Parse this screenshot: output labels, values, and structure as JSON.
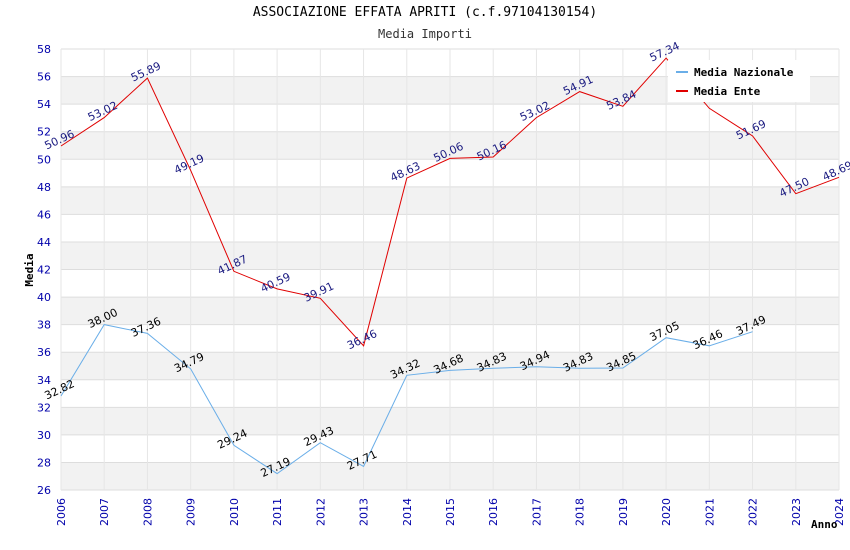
{
  "chart_data": {
    "type": "line",
    "title": "ASSOCIAZIONE EFFATA APRITI (c.f.97104130154)",
    "subtitle": "Media Importi",
    "xlabel": "Anno",
    "ylabel": "Media",
    "ylim": [
      26,
      58
    ],
    "yticks": [
      "26",
      "28",
      "30",
      "32",
      "34",
      "36",
      "38",
      "40",
      "42",
      "44",
      "46",
      "48",
      "50",
      "52",
      "54",
      "56",
      "58"
    ],
    "categories": [
      "2006",
      "2007",
      "2008",
      "2009",
      "2010",
      "2011",
      "2012",
      "2013",
      "2014",
      "2015",
      "2016",
      "2017",
      "2018",
      "2019",
      "2020",
      "2021",
      "2022",
      "2023",
      "2024"
    ],
    "legend_position": "top-right",
    "grid": true,
    "series": [
      {
        "name": "Media Nazionale",
        "color": "#6aaee8",
        "values": [
          32.82,
          38.0,
          37.36,
          34.79,
          29.24,
          27.19,
          29.43,
          27.71,
          34.32,
          34.68,
          34.83,
          34.94,
          34.83,
          34.85,
          37.05,
          36.46,
          37.49,
          null,
          null
        ],
        "labels": [
          "32.82",
          "38.00",
          "37.36",
          "34.79",
          "29.24",
          "27.19",
          "29.43",
          "27.71",
          "34.32",
          "34.68",
          "34.83",
          "34.94",
          "34.83",
          "34.85",
          "37.05",
          "36.46",
          "37.49",
          null,
          null
        ]
      },
      {
        "name": "Media Ente",
        "color": "#e00000",
        "values": [
          50.96,
          53.02,
          55.89,
          49.19,
          41.87,
          40.59,
          39.91,
          36.46,
          48.63,
          50.06,
          50.16,
          53.02,
          54.91,
          53.84,
          57.34,
          53.7,
          51.69,
          47.5,
          48.69
        ],
        "labels": [
          "50.96",
          "53.02",
          "55.89",
          "49.19",
          "41.87",
          "40.59",
          "39.91",
          "36.46",
          "48.63",
          "50.06",
          "50.16",
          "53.02",
          "54.91",
          "53.84",
          "57.34",
          null,
          "51.69",
          "47.50",
          "48.69"
        ]
      }
    ]
  }
}
